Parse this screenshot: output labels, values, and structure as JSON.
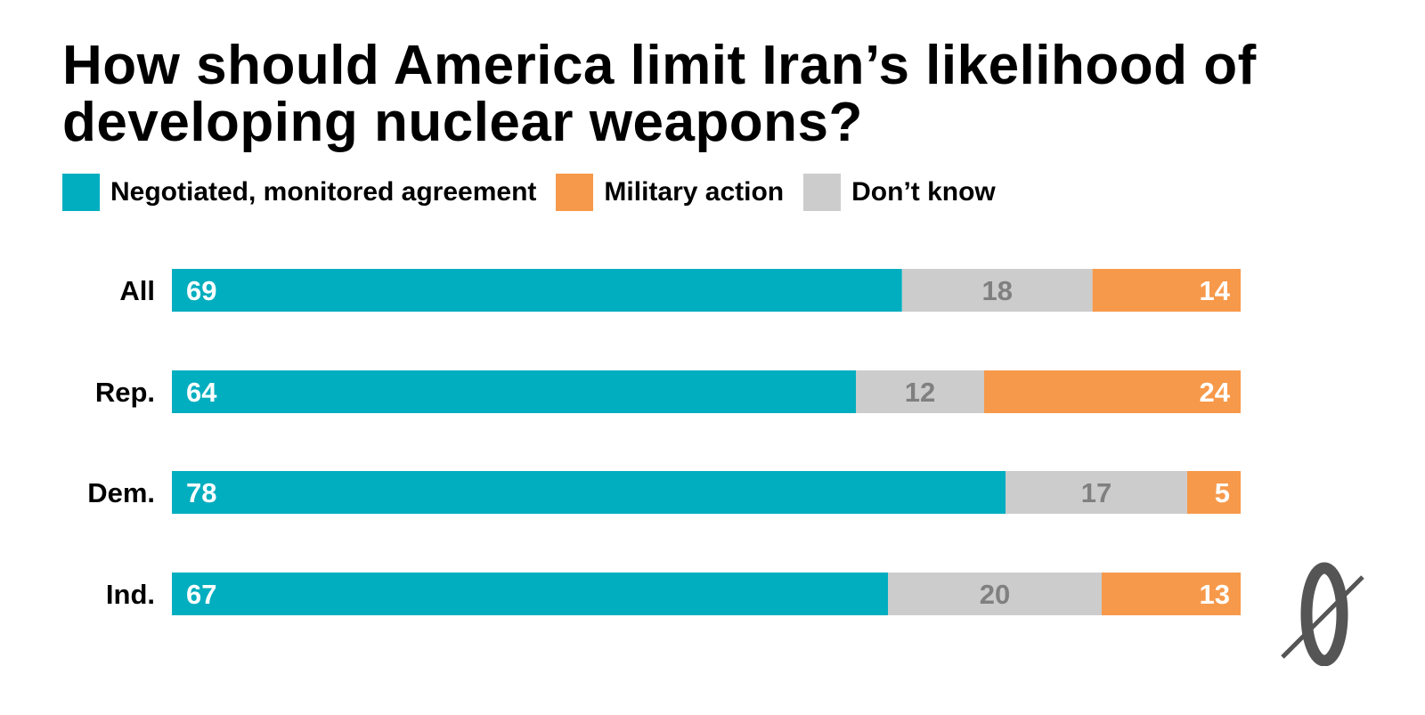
{
  "chart_data": {
    "type": "bar",
    "orientation": "horizontal",
    "stacked": true,
    "title": "How should America limit Iran’s likelihood of developing nuclear weapons?",
    "categories": [
      "All",
      "Rep.",
      "Dem.",
      "Ind."
    ],
    "series": [
      {
        "name": "Negotiated, monitored agreement",
        "color": "#00aebf",
        "label_color": "#ffffff",
        "values": [
          69,
          64,
          78,
          67
        ]
      },
      {
        "name": "Don’t know",
        "color": "#cccccc",
        "label_color": "#808080",
        "values": [
          18,
          12,
          17,
          20
        ]
      },
      {
        "name": "Military action",
        "color": "#f7994a",
        "label_color": "#ffffff",
        "values": [
          14,
          24,
          5,
          13
        ]
      }
    ],
    "legend": {
      "placement": "top-left",
      "order": [
        {
          "name": "Negotiated, monitored agreement",
          "color": "#00aebf"
        },
        {
          "name": "Military action",
          "color": "#f7994a"
        },
        {
          "name": "Don’t know",
          "color": "#cccccc"
        }
      ]
    },
    "grid": false,
    "xlabel": "",
    "ylabel": ""
  },
  "logo": {
    "icon": "zero-slash-logo-icon",
    "color": "#555555"
  }
}
